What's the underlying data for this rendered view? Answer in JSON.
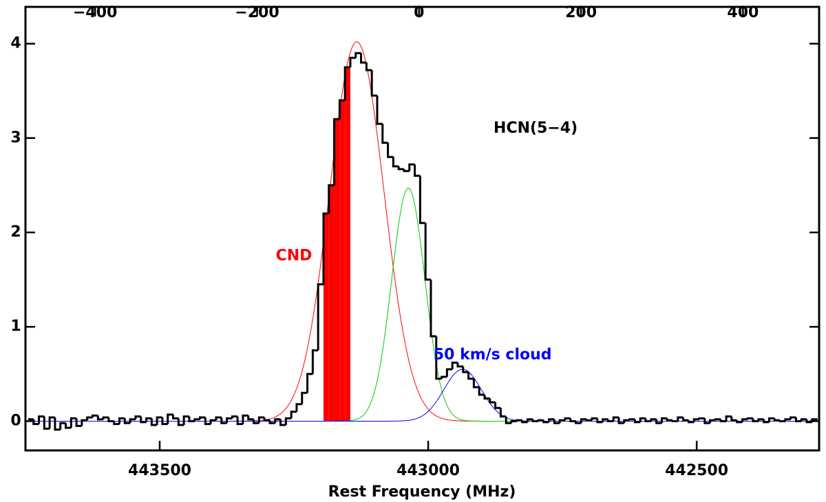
{
  "chart_data": {
    "type": "step",
    "x_label": "Rest Frequency (MHz)",
    "xlim": [
      443750,
      442272
    ],
    "xticks": [
      443500,
      443000,
      442500
    ],
    "x2lim": [
      -486,
      494
    ],
    "x2ticks": [
      {
        "value": -400,
        "label": "−400"
      },
      {
        "value": -200,
        "label": "−200"
      },
      0,
      200,
      400
    ],
    "ylim": [
      -0.31,
      4.39
    ],
    "yticks": [
      0,
      1,
      2,
      3,
      4
    ],
    "color": "#000000",
    "x": [
      443740,
      443730,
      443720,
      443710,
      443700,
      443690,
      443680,
      443670,
      443660,
      443650,
      443640,
      443630,
      443620,
      443610,
      443600,
      443590,
      443580,
      443570,
      443560,
      443550,
      443540,
      443530,
      443520,
      443510,
      443500,
      443490,
      443480,
      443470,
      443460,
      443450,
      443440,
      443430,
      443420,
      443410,
      443400,
      443390,
      443380,
      443370,
      443360,
      443350,
      443340,
      443330,
      443320,
      443310,
      443300,
      443290,
      443280,
      443270,
      443260,
      443250,
      443240,
      443230,
      443220,
      443210,
      443200,
      443190,
      443180,
      443170,
      443160,
      443150,
      443140,
      443130,
      443120,
      443110,
      443100,
      443090,
      443080,
      443070,
      443060,
      443050,
      443040,
      443030,
      443020,
      443010,
      443000,
      442990,
      442980,
      442970,
      442960,
      442950,
      442940,
      442930,
      442920,
      442910,
      442900,
      442890,
      442880,
      442870,
      442860,
      442850,
      442840,
      442830,
      442820,
      442810,
      442800,
      442790,
      442780,
      442770,
      442760,
      442750,
      442740,
      442730,
      442720,
      442710,
      442700,
      442690,
      442680,
      442670,
      442660,
      442650,
      442640,
      442630,
      442620,
      442610,
      442600,
      442590,
      442580,
      442570,
      442560,
      442550,
      442540,
      442530,
      442520,
      442510,
      442500,
      442490,
      442480,
      442470,
      442460,
      442450,
      442440,
      442430,
      442420,
      442410,
      442400,
      442390,
      442380,
      442370,
      442360,
      442350,
      442340,
      442330,
      442320,
      442310,
      442300,
      442290,
      442280
    ],
    "values": [
      0.02,
      -0.03,
      0.05,
      -0.08,
      0.04,
      -0.09,
      -0.02,
      -0.07,
      0.03,
      -0.05,
      0.01,
      0.04,
      0.06,
      0.02,
      0.04,
      0.0,
      -0.03,
      0.03,
      -0.02,
      0.02,
      0.05,
      -0.01,
      0.03,
      -0.04,
      0.04,
      -0.03,
      0.07,
      0.03,
      -0.04,
      0.05,
      0.0,
      0.02,
      0.04,
      -0.03,
      0.01,
      0.04,
      -0.02,
      0.03,
      0.05,
      -0.03,
      0.06,
      0.02,
      -0.02,
      0.04,
      0.01,
      -0.02,
      0.02,
      -0.04,
      0.03,
      0.1,
      0.18,
      0.3,
      0.5,
      0.75,
      1.45,
      2.2,
      2.5,
      3.2,
      3.4,
      3.75,
      3.85,
      3.9,
      3.8,
      3.72,
      3.45,
      3.15,
      2.95,
      2.8,
      2.7,
      2.67,
      2.65,
      2.72,
      2.6,
      2.1,
      1.5,
      0.9,
      0.45,
      0.47,
      0.55,
      0.62,
      0.58,
      0.52,
      0.45,
      0.36,
      0.28,
      0.24,
      0.2,
      0.14,
      0.05,
      -0.02,
      0.0,
      0.01,
      -0.01,
      0.02,
      0.0,
      0.01,
      -0.01,
      0.02,
      -0.02,
      0.01,
      0.03,
      0.0,
      -0.02,
      0.02,
      0.01,
      0.03,
      -0.01,
      0.02,
      0.0,
      0.04,
      -0.02,
      0.01,
      0.02,
      -0.01,
      0.03,
      0.0,
      0.02,
      -0.02,
      0.03,
      0.01,
      0.0,
      0.04,
      0.01,
      -0.01,
      0.02,
      0.03,
      -0.02,
      0.01,
      0.02,
      0.0,
      0.05,
      0.01,
      -0.01,
      0.02,
      0.03,
      0.0,
      0.02,
      -0.01,
      0.03,
      0.01,
      0.0,
      0.02,
      0.04,
      0.0,
      0.02,
      -0.01,
      0.02
    ],
    "fill": {
      "color": "#ff0000",
      "xlim": [
        443195,
        443145
      ]
    },
    "fits": [
      {
        "color": "#ff0000",
        "amplitude": 4.02,
        "center": 443133,
        "sigma": 50.6
      },
      {
        "color": "#00cc00",
        "amplitude": 2.47,
        "center": 443037,
        "sigma": 31
      },
      {
        "color": "#0000ff",
        "amplitude": 0.55,
        "center": 442936,
        "sigma": 35
      }
    ],
    "annotations": [
      {
        "text": "HCN(5−4)",
        "x": 442800,
        "y": 3.1,
        "color": "#000000"
      },
      {
        "text": "CND",
        "x": 443250,
        "y": 1.75,
        "color": "#ff0000"
      },
      {
        "text": "50 km/s cloud",
        "x": 442880,
        "y": 0.7,
        "color": "#0000ff"
      }
    ]
  }
}
